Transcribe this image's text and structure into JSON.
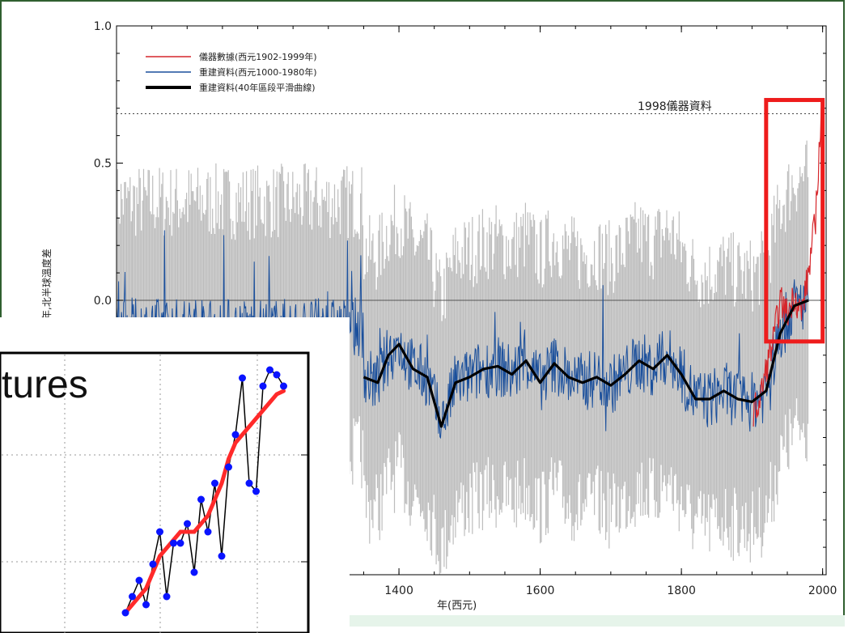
{
  "colors": {
    "instrument": "#d6262b",
    "reconstruction": "#1a4f9c",
    "smoothed": "#000000",
    "uncertainty": "#bdbdbd",
    "highlight_box": "#ee1c1c",
    "inset_curve": "#ff2a2a",
    "inset_points": "#0a14ff",
    "frame": "#2f5f2f"
  },
  "chart_data": [
    {
      "type": "line",
      "title": "",
      "xlabel": "年(西元)",
      "ylabel": "年,北半球溫度差",
      "xlim": [
        1000,
        2005
      ],
      "ylim": [
        -1.0,
        1.0
      ],
      "yticks": [
        "1.0",
        "0.5",
        "0.0"
      ],
      "xticks": [
        "1400",
        "1600",
        "1800",
        "2000"
      ],
      "grid": false,
      "legend_position": "top-left",
      "legend": [
        {
          "label": "儀器數據(西元1902-1999年)",
          "color_key": "instrument"
        },
        {
          "label": "重建資料(西元1000-1980年)",
          "color_key": "reconstruction"
        },
        {
          "label": "重建資料(40年區段平滑曲線)",
          "color_key": "smoothed"
        }
      ],
      "annotations": [
        {
          "text": "1998儀器資料",
          "y": 0.68,
          "style": "dotted reference line"
        }
      ],
      "series": [
        {
          "name": "重建資料(40年區段平滑曲線)",
          "x": [
            1350,
            1370,
            1385,
            1400,
            1420,
            1440,
            1460,
            1480,
            1500,
            1520,
            1540,
            1560,
            1580,
            1600,
            1620,
            1640,
            1660,
            1680,
            1700,
            1720,
            1740,
            1760,
            1780,
            1800,
            1820,
            1840,
            1860,
            1880,
            1900,
            1920,
            1940,
            1960,
            1980
          ],
          "values": [
            -0.28,
            -0.3,
            -0.2,
            -0.16,
            -0.25,
            -0.28,
            -0.46,
            -0.3,
            -0.28,
            -0.25,
            -0.24,
            -0.27,
            -0.22,
            -0.3,
            -0.23,
            -0.28,
            -0.3,
            -0.28,
            -0.31,
            -0.27,
            -0.22,
            -0.25,
            -0.2,
            -0.27,
            -0.36,
            -0.36,
            -0.33,
            -0.36,
            -0.37,
            -0.33,
            -0.12,
            -0.02,
            -0.0
          ]
        },
        {
          "name": "儀器數據(西元1902-1999年)",
          "x": [
            1902,
            1910,
            1920,
            1930,
            1940,
            1950,
            1960,
            1970,
            1980,
            1990,
            1998,
            1999
          ],
          "values": [
            -0.4,
            -0.38,
            -0.25,
            -0.15,
            0.0,
            -0.05,
            0.02,
            -0.05,
            0.1,
            0.3,
            0.68,
            0.55
          ]
        }
      ],
      "highlight": {
        "x_range": [
          1920,
          2000
        ],
        "y_range": [
          -0.15,
          0.73
        ]
      }
    },
    {
      "type": "line",
      "title": "tures",
      "series": [
        {
          "name": "",
          "values": [
            -0.55,
            -0.45,
            -0.35,
            -0.5,
            -0.25,
            -0.05,
            -0.45,
            -0.12,
            -0.12,
            0.0,
            -0.3,
            0.15,
            -0.05,
            0.25,
            -0.2,
            0.35,
            0.55,
            0.9,
            0.25,
            0.2,
            0.85,
            0.95,
            0.92,
            0.85
          ]
        },
        {
          "name": "",
          "values": [
            -0.55,
            -0.5,
            -0.45,
            -0.4,
            -0.3,
            -0.2,
            -0.15,
            -0.1,
            -0.05,
            -0.05,
            -0.05,
            0.0,
            0.05,
            0.15,
            0.25,
            0.4,
            0.5,
            0.55,
            0.6,
            0.65,
            0.7,
            0.75,
            0.8,
            0.82
          ]
        }
      ]
    }
  ]
}
